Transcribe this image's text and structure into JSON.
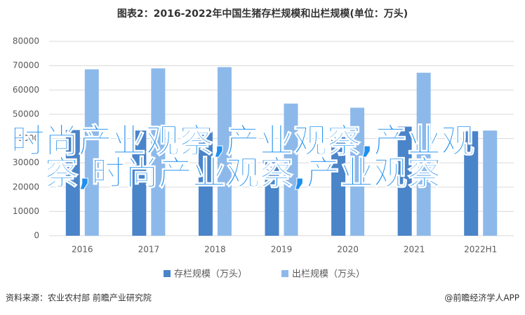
{
  "chart_data": {
    "type": "bar",
    "title": "图表2：2016-2022年中国生猪存栏规模和出栏规模(单位：万头)",
    "categories": [
      "2016",
      "2017",
      "2018",
      "2019",
      "2020",
      "2021",
      "2022H1"
    ],
    "series": [
      {
        "name": "存栏规模（万头）",
        "color": "#4a84c9",
        "values": [
          43500,
          43300,
          42800,
          31000,
          40600,
          44900,
          43000
        ]
      },
      {
        "name": "出栏规模（万头）",
        "color": "#8db9ea",
        "values": [
          68500,
          68900,
          69400,
          54400,
          52700,
          67100,
          43300
        ]
      }
    ],
    "ylim": [
      0,
      80000
    ],
    "yticks": [
      0,
      10000,
      20000,
      30000,
      40000,
      50000,
      60000,
      70000,
      80000
    ],
    "grid": true,
    "legend": "bottom",
    "overlay_text": "时尚产业观察,产业观察,产业观察,时尚产业观察,产业观察",
    "source": "资料来源：农业农村部 前瞻产业研究院",
    "credit": "@前瞻经济学人APP"
  }
}
